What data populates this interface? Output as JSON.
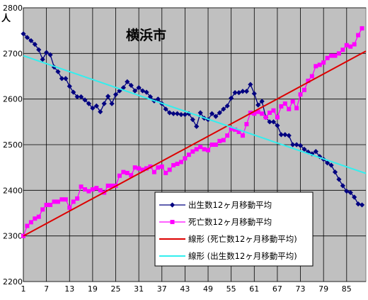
{
  "chart_data": {
    "type": "line",
    "title": "横浜市",
    "ylabel": "人",
    "xlabel": "",
    "ylim": [
      2200,
      2800
    ],
    "yticks": [
      2200,
      2300,
      2400,
      2500,
      2600,
      2700,
      2800
    ],
    "xlim": [
      1,
      90
    ],
    "xticks": [
      1,
      7,
      13,
      19,
      25,
      31,
      37,
      43,
      49,
      55,
      61,
      67,
      73,
      79,
      85
    ],
    "grid": true,
    "legend_position": "bottom-right",
    "series": [
      {
        "name": "出生数12ヶ月移動平均",
        "color": "#000080",
        "marker": "diamond",
        "x": [
          1,
          2,
          3,
          4,
          5,
          6,
          7,
          8,
          9,
          10,
          11,
          12,
          13,
          14,
          15,
          16,
          17,
          18,
          19,
          20,
          21,
          22,
          23,
          24,
          25,
          26,
          27,
          28,
          29,
          30,
          31,
          32,
          33,
          34,
          35,
          36,
          37,
          38,
          39,
          40,
          41,
          42,
          43,
          44,
          45,
          46,
          47,
          48,
          49,
          50,
          51,
          52,
          53,
          54,
          55,
          56,
          57,
          58,
          59,
          60,
          61,
          62,
          63,
          64,
          65,
          66,
          67,
          68,
          69,
          70,
          71,
          72,
          73,
          74,
          75,
          76,
          77,
          78,
          79,
          80,
          81,
          82,
          83,
          84,
          85,
          86,
          87,
          88,
          89
        ],
        "values": [
          2743,
          2735,
          2728,
          2720,
          2708,
          2687,
          2702,
          2697,
          2670,
          2660,
          2645,
          2645,
          2628,
          2615,
          2605,
          2605,
          2598,
          2590,
          2580,
          2585,
          2572,
          2590,
          2606,
          2590,
          2610,
          2618,
          2625,
          2638,
          2630,
          2618,
          2625,
          2618,
          2615,
          2605,
          2596,
          2600,
          2590,
          2578,
          2570,
          2568,
          2568,
          2566,
          2566,
          2568,
          2555,
          2540,
          2570,
          2558,
          2555,
          2568,
          2562,
          2570,
          2578,
          2585,
          2602,
          2614,
          2614,
          2617,
          2617,
          2632,
          2612,
          2587,
          2595,
          2560,
          2550,
          2550,
          2542,
          2522,
          2522,
          2520,
          2500,
          2500,
          2498,
          2490,
          2484,
          2480,
          2485,
          2474,
          2468,
          2460,
          2455,
          2440,
          2424,
          2410,
          2398,
          2395,
          2385,
          2370,
          2368
        ]
      },
      {
        "name": "死亡数12ヶ月移動平均",
        "color": "#FF00FF",
        "marker": "square",
        "x": [
          1,
          2,
          3,
          4,
          5,
          6,
          7,
          8,
          9,
          10,
          11,
          12,
          13,
          14,
          15,
          16,
          17,
          18,
          19,
          20,
          21,
          22,
          23,
          24,
          25,
          26,
          27,
          28,
          29,
          30,
          31,
          32,
          33,
          34,
          35,
          36,
          37,
          38,
          39,
          40,
          41,
          42,
          43,
          44,
          45,
          46,
          47,
          48,
          49,
          50,
          51,
          52,
          53,
          54,
          55,
          56,
          57,
          58,
          59,
          60,
          61,
          62,
          63,
          64,
          65,
          66,
          67,
          68,
          69,
          70,
          71,
          72,
          73,
          74,
          75,
          76,
          77,
          78,
          79,
          80,
          81,
          82,
          83,
          84,
          85,
          86,
          87,
          88,
          89
        ],
        "values": [
          2300,
          2322,
          2330,
          2338,
          2342,
          2358,
          2368,
          2368,
          2375,
          2375,
          2380,
          2380,
          2362,
          2375,
          2382,
          2408,
          2402,
          2398,
          2402,
          2405,
          2400,
          2395,
          2410,
          2410,
          2410,
          2432,
          2440,
          2438,
          2433,
          2450,
          2448,
          2445,
          2448,
          2452,
          2440,
          2450,
          2452,
          2438,
          2445,
          2455,
          2458,
          2462,
          2470,
          2478,
          2485,
          2490,
          2495,
          2490,
          2488,
          2500,
          2500,
          2508,
          2510,
          2520,
          2535,
          2533,
          2528,
          2520,
          2545,
          2570,
          2568,
          2572,
          2568,
          2560,
          2570,
          2575,
          2560,
          2584,
          2590,
          2578,
          2595,
          2580,
          2610,
          2620,
          2640,
          2650,
          2672,
          2675,
          2680,
          2690,
          2695,
          2695,
          2700,
          2708,
          2718,
          2715,
          2720,
          2740,
          2755
        ]
      },
      {
        "name": "線形 (死亡数12ヶ月移動平均)",
        "color": "#DD0000",
        "marker": "none",
        "x": [
          1,
          90
        ],
        "values": [
          2300,
          2705
        ]
      },
      {
        "name": "線形 (出生数12ヶ月移動平均)",
        "color": "#33EEEE",
        "marker": "none",
        "x": [
          1,
          90
        ],
        "values": [
          2695,
          2437
        ]
      }
    ]
  },
  "colors": {
    "plot_background": "#C0C0C0",
    "grid": "#000000",
    "page_background": "#FFFFFF"
  }
}
